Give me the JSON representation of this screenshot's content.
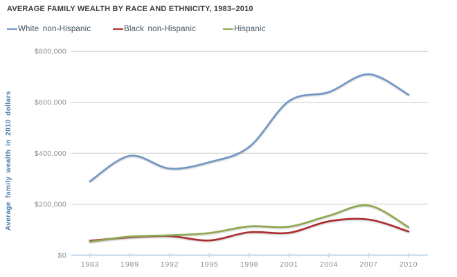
{
  "chart_data": {
    "type": "line",
    "title": "AVERAGE FAMILY WEALTH BY RACE AND ETHNICITY, 1983–2010",
    "ylabel": "Average family wealth in 2010 dollars",
    "xlabel": "",
    "categories": [
      "1983",
      "1989",
      "1992",
      "1995",
      "1998",
      "2001",
      "2004",
      "2007",
      "2010"
    ],
    "y_tick_labels": [
      "$0",
      "$200,000",
      "$400,000",
      "$600,000",
      "$800,000"
    ],
    "y_tick_values": [
      0,
      200000,
      400000,
      600000,
      800000
    ],
    "ylim": [
      0,
      800000
    ],
    "grid": "horizontal-only",
    "legend_position": "top-left",
    "line_style": "smoothed-spline",
    "series": [
      {
        "name": "White non-Hispanic",
        "color": "#7296c5",
        "values": [
          290000,
          390000,
          340000,
          365000,
          425000,
          605000,
          640000,
          710000,
          630000
        ]
      },
      {
        "name": "Black non-Hispanic",
        "color": "#ae2c30",
        "values": [
          57000,
          70000,
          75000,
          58000,
          90000,
          88000,
          133000,
          140000,
          93000
        ]
      },
      {
        "name": "Hispanic",
        "color": "#8da84e",
        "values": [
          53000,
          73000,
          78000,
          87000,
          113000,
          112000,
          155000,
          195000,
          110000
        ]
      }
    ]
  },
  "colors": {
    "title_text": "#3d3d3d",
    "legend_text": "#3e5260",
    "ylabel_text": "#4d7dad",
    "gridline": "#cbcbcb",
    "axis_line": "#c2d5e8",
    "tick_text": "#8c8c8c",
    "background": "#ffffff"
  }
}
